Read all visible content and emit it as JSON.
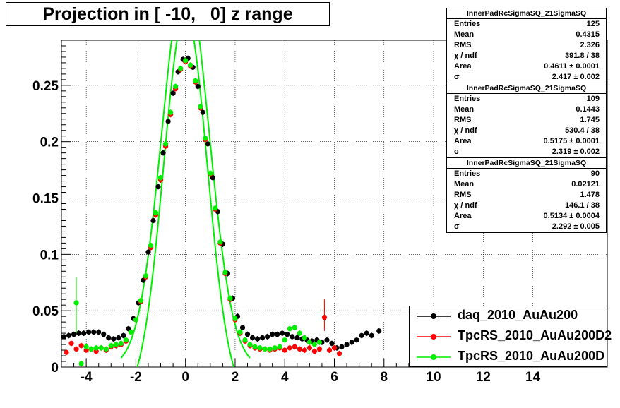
{
  "title": "Projection in [ -10,   0] z range",
  "chart_data": {
    "type": "scatter",
    "xlim": [
      -5,
      17
    ],
    "ylim": [
      0,
      0.29
    ],
    "xticks": [
      "-4",
      "-2",
      "0",
      "2",
      "4",
      "6",
      "8",
      "10",
      "12",
      "14"
    ],
    "xtick_values": [
      -4,
      -2,
      0,
      2,
      4,
      6,
      8,
      10,
      12,
      14
    ],
    "yticks": [
      "0",
      "0.05",
      "0.1",
      "0.15",
      "0.2",
      "0.25"
    ],
    "ytick_values": [
      0,
      0.05,
      0.1,
      0.15,
      0.2,
      0.25
    ],
    "grid": true,
    "series": [
      {
        "name": "daq_2010_AuAu200",
        "color": "#000000",
        "points": [
          [
            -4.9,
            0.027
          ],
          [
            -4.7,
            0.028
          ],
          [
            -4.5,
            0.029
          ],
          [
            -4.3,
            0.03
          ],
          [
            -4.1,
            0.03
          ],
          [
            -3.9,
            0.031
          ],
          [
            -3.7,
            0.031
          ],
          [
            -3.5,
            0.031
          ],
          [
            -3.3,
            0.029
          ],
          [
            -3.1,
            0.026
          ],
          [
            -2.9,
            0.025
          ],
          [
            -2.7,
            0.026
          ],
          [
            -2.5,
            0.028
          ],
          [
            -2.3,
            0.034
          ],
          [
            -2.1,
            0.043
          ],
          [
            -1.9,
            0.057
          ],
          [
            -1.7,
            0.077
          ],
          [
            -1.5,
            0.102
          ],
          [
            -1.3,
            0.13
          ],
          [
            -1.1,
            0.16
          ],
          [
            -0.9,
            0.19
          ],
          [
            -0.7,
            0.218
          ],
          [
            -0.5,
            0.243
          ],
          [
            -0.3,
            0.262
          ],
          [
            -0.1,
            0.273
          ],
          [
            0.1,
            0.274
          ],
          [
            0.3,
            0.266
          ],
          [
            0.5,
            0.249
          ],
          [
            0.7,
            0.226
          ],
          [
            0.9,
            0.198
          ],
          [
            1.1,
            0.168
          ],
          [
            1.3,
            0.138
          ],
          [
            1.5,
            0.109
          ],
          [
            1.7,
            0.083
          ],
          [
            1.9,
            0.061
          ],
          [
            2.1,
            0.045
          ],
          [
            2.3,
            0.035
          ],
          [
            2.5,
            0.029
          ],
          [
            2.7,
            0.026
          ],
          [
            2.9,
            0.025
          ],
          [
            3.1,
            0.026
          ],
          [
            3.3,
            0.027
          ],
          [
            3.5,
            0.029
          ],
          [
            3.7,
            0.029
          ],
          [
            3.9,
            0.03
          ],
          [
            4.1,
            0.029
          ],
          [
            4.3,
            0.027
          ],
          [
            4.5,
            0.026
          ],
          [
            4.7,
            0.025
          ],
          [
            4.9,
            0.024
          ],
          [
            5.1,
            0.023
          ],
          [
            5.3,
            0.024
          ],
          [
            5.5,
            0.022
          ],
          [
            5.7,
            0.024
          ],
          [
            5.9,
            0.021
          ],
          [
            6.1,
            0.017
          ],
          [
            6.3,
            0.018
          ],
          [
            6.5,
            0.02
          ],
          [
            6.7,
            0.022
          ],
          [
            6.9,
            0.024
          ],
          [
            7.1,
            0.028
          ],
          [
            7.3,
            0.03
          ],
          [
            7.5,
            0.028
          ],
          [
            7.8,
            0.032
          ]
        ]
      },
      {
        "name": "TpcRS_2010_AuAu200D2",
        "color": "#ff0000",
        "points": [
          [
            -4.8,
            0.013
          ],
          [
            -4.6,
            0.021
          ],
          [
            -4.4,
            0.016
          ],
          [
            -4.2,
            0.019
          ],
          [
            -4.0,
            0.015
          ],
          [
            -3.8,
            0.016
          ],
          [
            -3.6,
            0.014
          ],
          [
            -3.4,
            0.017
          ],
          [
            -3.2,
            0.015
          ],
          [
            -3.0,
            0.018
          ],
          [
            -2.8,
            0.019
          ],
          [
            -2.6,
            0.02
          ],
          [
            -2.4,
            0.023
          ],
          [
            -2.2,
            0.031
          ],
          [
            -2.0,
            0.042
          ],
          [
            -1.8,
            0.058
          ],
          [
            -1.6,
            0.08
          ],
          [
            -1.4,
            0.106
          ],
          [
            -1.2,
            0.135
          ],
          [
            -1.0,
            0.166
          ],
          [
            -0.8,
            0.196
          ],
          [
            -0.6,
            0.224
          ],
          [
            -0.4,
            0.247
          ],
          [
            -0.2,
            0.264
          ],
          [
            0.0,
            0.271
          ],
          [
            0.2,
            0.267
          ],
          [
            0.4,
            0.253
          ],
          [
            0.6,
            0.23
          ],
          [
            0.8,
            0.202
          ],
          [
            1.0,
            0.171
          ],
          [
            1.2,
            0.14
          ],
          [
            1.4,
            0.11
          ],
          [
            1.6,
            0.083
          ],
          [
            1.8,
            0.06
          ],
          [
            2.0,
            0.042
          ],
          [
            2.2,
            0.03
          ],
          [
            2.4,
            0.023
          ],
          [
            2.6,
            0.019
          ],
          [
            2.8,
            0.017
          ],
          [
            3.0,
            0.016
          ],
          [
            3.2,
            0.016
          ],
          [
            3.4,
            0.015
          ],
          [
            3.6,
            0.016
          ],
          [
            3.8,
            0.017
          ],
          [
            4.0,
            0.015
          ],
          [
            4.2,
            0.017
          ],
          [
            4.4,
            0.018
          ],
          [
            4.6,
            0.016
          ],
          [
            4.8,
            0.015
          ],
          [
            5.0,
            0.017
          ],
          [
            5.2,
            0.014
          ],
          [
            5.4,
            0.016
          ],
          [
            5.6,
            0.044
          ],
          [
            5.8,
            0.015
          ],
          [
            6.0,
            0.017
          ],
          [
            6.2,
            0.012
          ]
        ]
      },
      {
        "name": "TpcRS_2010_AuAu200D",
        "color": "#00ee00",
        "points": [
          [
            -4.4,
            0.057
          ],
          [
            -4.2,
            0.003
          ],
          [
            -4.0,
            0.018
          ],
          [
            -3.8,
            0.016
          ],
          [
            -3.6,
            0.017
          ],
          [
            -3.4,
            0.017
          ],
          [
            -3.2,
            0.016
          ],
          [
            -3.0,
            0.019
          ],
          [
            -2.8,
            0.02
          ],
          [
            -2.6,
            0.021
          ],
          [
            -2.4,
            0.024
          ],
          [
            -2.2,
            0.031
          ],
          [
            -2.0,
            0.042
          ],
          [
            -1.8,
            0.059
          ],
          [
            -1.6,
            0.081
          ],
          [
            -1.4,
            0.108
          ],
          [
            -1.2,
            0.137
          ],
          [
            -1.0,
            0.168
          ],
          [
            -0.8,
            0.198
          ],
          [
            -0.6,
            0.226
          ],
          [
            -0.4,
            0.249
          ],
          [
            -0.2,
            0.265
          ],
          [
            0.0,
            0.272
          ],
          [
            0.2,
            0.268
          ],
          [
            0.4,
            0.254
          ],
          [
            0.6,
            0.231
          ],
          [
            0.8,
            0.203
          ],
          [
            1.0,
            0.172
          ],
          [
            1.2,
            0.141
          ],
          [
            1.4,
            0.111
          ],
          [
            1.6,
            0.084
          ],
          [
            1.8,
            0.061
          ],
          [
            2.0,
            0.043
          ],
          [
            2.2,
            0.031
          ],
          [
            2.4,
            0.024
          ],
          [
            2.6,
            0.02
          ],
          [
            2.8,
            0.018
          ],
          [
            3.0,
            0.017
          ],
          [
            3.2,
            0.016
          ],
          [
            3.4,
            0.016
          ],
          [
            3.6,
            0.017
          ],
          [
            3.8,
            0.018
          ],
          [
            4.0,
            0.024
          ],
          [
            4.2,
            0.034
          ],
          [
            4.4,
            0.035
          ],
          [
            4.6,
            0.03
          ],
          [
            4.8,
            0.026
          ],
          [
            5.0,
            0.022
          ],
          [
            5.2,
            0.02
          ],
          [
            5.4,
            0.022
          ]
        ]
      }
    ],
    "fit_color": "#00ee00"
  },
  "stat_boxes": [
    {
      "title": "InnerPadRcSigmaSQ_21SigmaSQ",
      "rows": [
        {
          "label": "Entries",
          "value": "125"
        },
        {
          "label": "Mean",
          "value": "0.4315"
        },
        {
          "label": "RMS",
          "value": "2.326"
        },
        {
          "label": "χ  / ndf",
          "value": "391.8 / 38"
        },
        {
          "label": "Area",
          "value": "0.4611 ± 0.0001"
        },
        {
          "label": "σ",
          "value": "2.417 ± 0.002"
        }
      ]
    },
    {
      "title": "InnerPadRcSigmaSQ_21SigmaSQ",
      "rows": [
        {
          "label": "Entries",
          "value": "109"
        },
        {
          "label": "Mean",
          "value": "0.1443"
        },
        {
          "label": "RMS",
          "value": "1.745"
        },
        {
          "label": "χ  / ndf",
          "value": "530.4 / 38"
        },
        {
          "label": "Area",
          "value": "0.5175 ± 0.0001"
        },
        {
          "label": "σ",
          "value": "2.319 ± 0.002"
        }
      ]
    },
    {
      "title": "InnerPadRcSigmaSQ_21SigmaSQ",
      "rows": [
        {
          "label": "Entries",
          "value": "90"
        },
        {
          "label": "Mean",
          "value": "0.02121"
        },
        {
          "label": "RMS",
          "value": "1.478"
        },
        {
          "label": "χ  / ndf",
          "value": "146.1 / 38"
        },
        {
          "label": "Area",
          "value": "0.5134 ± 0.0004"
        },
        {
          "label": "σ",
          "value": "2.292 ± 0.005"
        }
      ]
    }
  ],
  "legend": [
    {
      "label": "daq_2010_AuAu200",
      "color": "#000000"
    },
    {
      "label": "TpcRS_2010_AuAu200D2",
      "color": "#ff0000"
    },
    {
      "label": "TpcRS_2010_AuAu200D",
      "color": "#00ee00"
    }
  ]
}
